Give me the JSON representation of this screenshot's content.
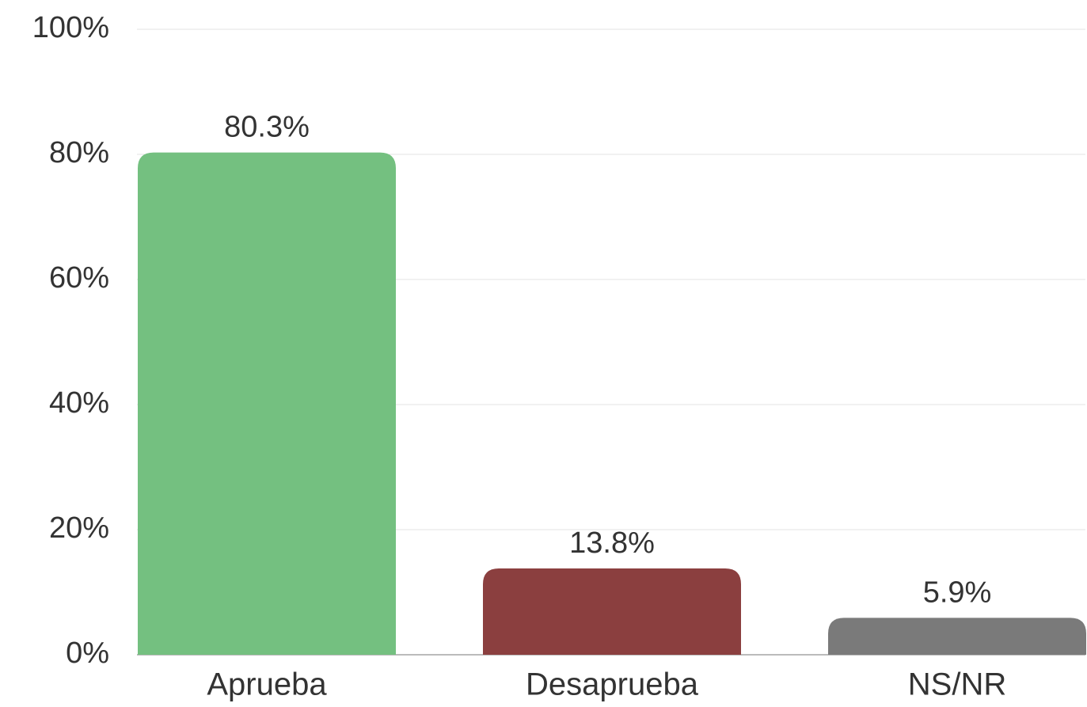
{
  "chart_data": {
    "type": "bar",
    "categories": [
      "Aprueba",
      "Desaprueba",
      "NS/NR"
    ],
    "values": [
      80.3,
      13.8,
      5.9
    ],
    "value_labels": [
      "80.3%",
      "13.8%",
      "5.9%"
    ],
    "colors": [
      "#74c080",
      "#8b3f3f",
      "#7a7a7a"
    ],
    "ylim": [
      0,
      100
    ],
    "yticks": [
      {
        "value": 0,
        "label": "0%"
      },
      {
        "value": 20,
        "label": "20%"
      },
      {
        "value": 40,
        "label": "40%"
      },
      {
        "value": 60,
        "label": "60%"
      },
      {
        "value": 80,
        "label": "80%"
      },
      {
        "value": 100,
        "label": "100%"
      }
    ],
    "grid": true
  }
}
